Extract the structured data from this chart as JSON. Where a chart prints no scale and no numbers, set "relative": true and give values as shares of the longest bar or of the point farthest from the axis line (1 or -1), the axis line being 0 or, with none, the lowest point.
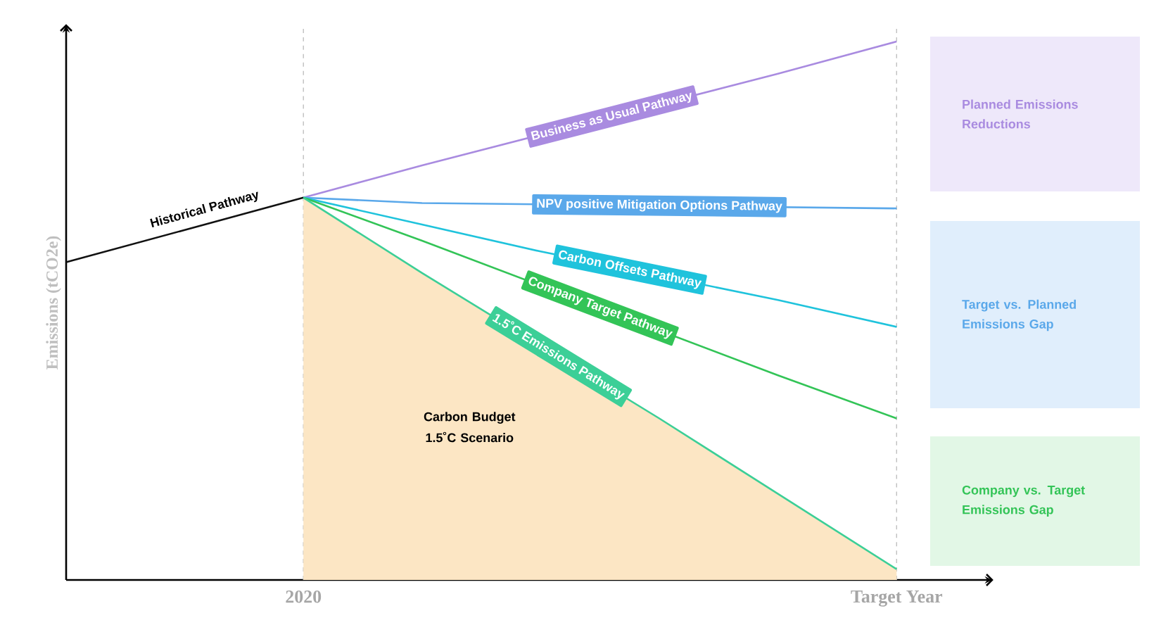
{
  "chart_data": {
    "type": "line",
    "relative": true,
    "ylabel": "Emissions (tCO2e)",
    "categories": [
      null,
      null,
      "2020",
      null,
      null,
      null,
      null,
      "Target Year"
    ],
    "series": [
      {
        "name": "Carbon Budget 1.5˚C Scenario",
        "type": "area",
        "color": "#fce6c4",
        "values": [
          null,
          null,
          0.71,
          0.57,
          null,
          0.3,
          0.16,
          0.02
        ]
      },
      {
        "name": "Historical Pathway",
        "color": "#111111",
        "values": [
          0.59,
          0.65,
          0.71,
          null,
          null,
          null,
          null,
          null
        ]
      },
      {
        "name": "Business as Usual Pathway",
        "color": "#a98be0",
        "values": [
          null,
          null,
          0.71,
          0.77,
          null,
          null,
          0.94,
          1.0
        ]
      },
      {
        "name": "NPV positive Mitigation Options Pathway",
        "color": "#5aa8ea",
        "values": [
          null,
          null,
          0.71,
          0.7,
          null,
          null,
          null,
          0.69
        ]
      },
      {
        "name": "Carbon Offsets Pathway",
        "color": "#1fc3dc",
        "values": [
          null,
          null,
          0.71,
          0.66,
          0.61,
          null,
          0.52,
          0.47
        ]
      },
      {
        "name": "Company Target Pathway",
        "color": "#33c457",
        "values": [
          null,
          null,
          0.71,
          0.63,
          null,
          null,
          0.38,
          0.3
        ]
      },
      {
        "name": "1.5˚C Emissions Pathway",
        "color": "#3ccf97",
        "values": [
          null,
          null,
          0.71,
          0.57,
          null,
          0.3,
          0.16,
          0.02
        ]
      }
    ],
    "annotations": [
      "Planned Emissions Reductions",
      "Target vs. Planned Emissions Gap",
      "Company vs. Target Emissions Gap"
    ]
  }
}
